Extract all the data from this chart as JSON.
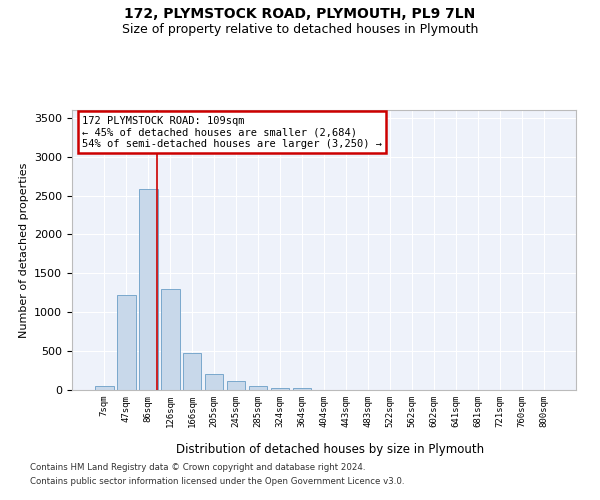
{
  "title_line1": "172, PLYMSTOCK ROAD, PLYMOUTH, PL9 7LN",
  "title_line2": "Size of property relative to detached houses in Plymouth",
  "xlabel": "Distribution of detached houses by size in Plymouth",
  "ylabel": "Number of detached properties",
  "bar_labels": [
    "7sqm",
    "47sqm",
    "86sqm",
    "126sqm",
    "166sqm",
    "205sqm",
    "245sqm",
    "285sqm",
    "324sqm",
    "364sqm",
    "404sqm",
    "443sqm",
    "483sqm",
    "522sqm",
    "562sqm",
    "602sqm",
    "641sqm",
    "681sqm",
    "721sqm",
    "760sqm",
    "800sqm"
  ],
  "bar_values": [
    50,
    1220,
    2580,
    1300,
    480,
    210,
    110,
    50,
    30,
    30,
    0,
    0,
    0,
    0,
    0,
    0,
    0,
    0,
    0,
    0,
    0
  ],
  "bar_color": "#c8d8ea",
  "bar_edge_color": "#7aa8cc",
  "red_line_x": 2.4,
  "annotation_text": "172 PLYMSTOCK ROAD: 109sqm\n← 45% of detached houses are smaller (2,684)\n54% of semi-detached houses are larger (3,250) →",
  "annotation_box_color": "white",
  "annotation_box_edge_color": "#cc0000",
  "ylim": [
    0,
    3600
  ],
  "yticks": [
    0,
    500,
    1000,
    1500,
    2000,
    2500,
    3000,
    3500
  ],
  "background_color": "#eef2fa",
  "grid_color": "#ffffff",
  "footer_line1": "Contains HM Land Registry data © Crown copyright and database right 2024.",
  "footer_line2": "Contains public sector information licensed under the Open Government Licence v3.0."
}
